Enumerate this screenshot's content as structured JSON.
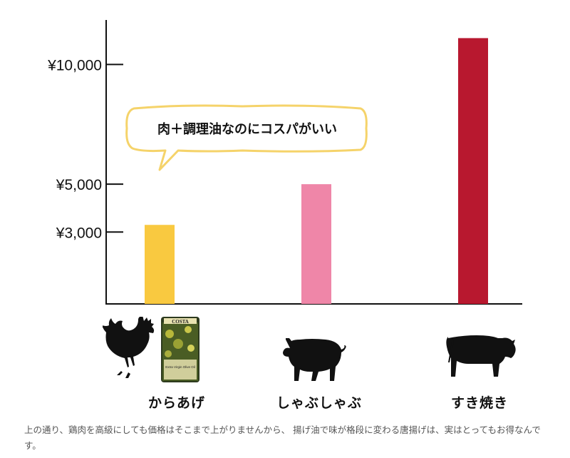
{
  "chart_data": {
    "type": "bar",
    "categories": [
      "からあげ",
      "しゃぶしゃぶ",
      "すき焼き"
    ],
    "values": [
      3300,
      5000,
      11100
    ],
    "colors": [
      "#f9c940",
      "#ef86a8",
      "#b8182f"
    ],
    "yticks": [
      3000,
      5000,
      10000
    ],
    "ytick_labels": [
      "¥3,000",
      "¥5,000",
      "¥10,000"
    ],
    "ylim": [
      0,
      11500
    ],
    "grid": false,
    "annotation": "肉＋調理油なのにコスパがいい"
  },
  "icons": {
    "karaage": [
      "rooster-icon",
      "olive-oil-can-icon"
    ],
    "shabu": "pig-icon",
    "sukiyaki": "cow-icon"
  },
  "oil_can_label": {
    "brand": "COSTA",
    "line": "Extra Virgin Olive Oil"
  },
  "caption": "上の通り、鶏肉を高級にしても価格はそこまで上がりませんから、 揚げ油で味が格段に変わる唐揚げは、実はとってもお得なんです。"
}
